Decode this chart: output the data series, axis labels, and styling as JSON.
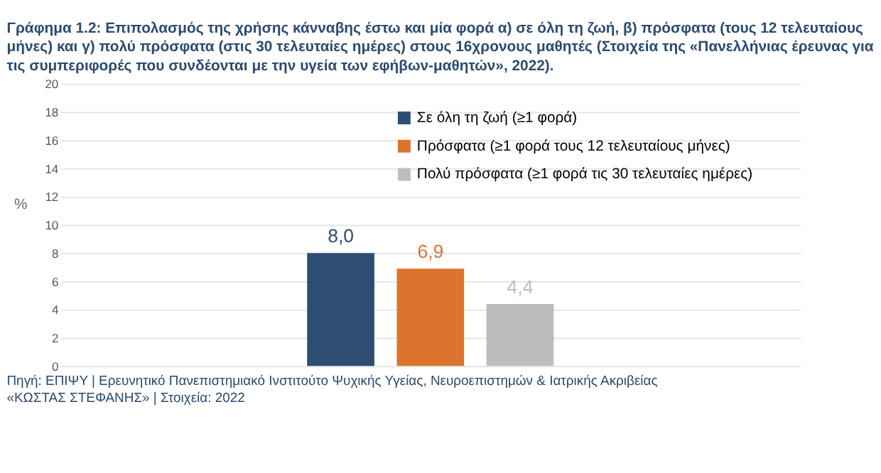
{
  "chart_data": {
    "type": "bar",
    "title": "Γράφημα 1.2: Επιπολασμός της χρήσης κάνναβης έστω και μία φορά α) σε όλη τη ζωή, β) πρόσφατα (τους 12 τελευταίους μήνες) και γ) πολύ πρόσφατα (στις 30 τελευταίες ημέρες) στους 16χρονους μαθητές (Στοιχεία της «Πανελλήνιας έρευνας για τις συμπεριφορές που συνδέονται με την υγεία των εφήβων-μαθητών», 2022).",
    "ylabel": "%",
    "categories": [
      null
    ],
    "series": [
      {
        "name": "Σε όλη τη ζωή (≥1 φορά)",
        "color": "#2e4d73",
        "values": [
          8.0
        ],
        "value_labels": [
          "8,0"
        ]
      },
      {
        "name": "Πρόσφατα (≥1 φορά τους 12 τελευταίους μήνες)",
        "color": "#dd742d",
        "values": [
          6.9
        ],
        "value_labels": [
          "6,9"
        ]
      },
      {
        "name": "Πολύ πρόσφατα (≥1 φορά τις 30 τελευταίες ημέρες)",
        "color": "#bdbdbd",
        "values": [
          4.4
        ],
        "value_labels": [
          "4,4"
        ]
      }
    ],
    "ylim": [
      0,
      20
    ],
    "yticks": [
      0,
      2,
      4,
      6,
      8,
      10,
      12,
      14,
      16,
      18,
      20
    ],
    "grid": "y",
    "legend": "top right",
    "annotations": [
      "Πηγή: ΕΠΙΨΥ | Ερευνητικό Πανεπιστημιακό Ινστιτούτο Ψυχικής Υγείας, Νευροεπιστημών & Ιατρικής Ακριβείας «ΚΩΣΤΑΣ ΣΤΕΦΑΝΗΣ» | Στοιχεία: 2022"
    ]
  }
}
